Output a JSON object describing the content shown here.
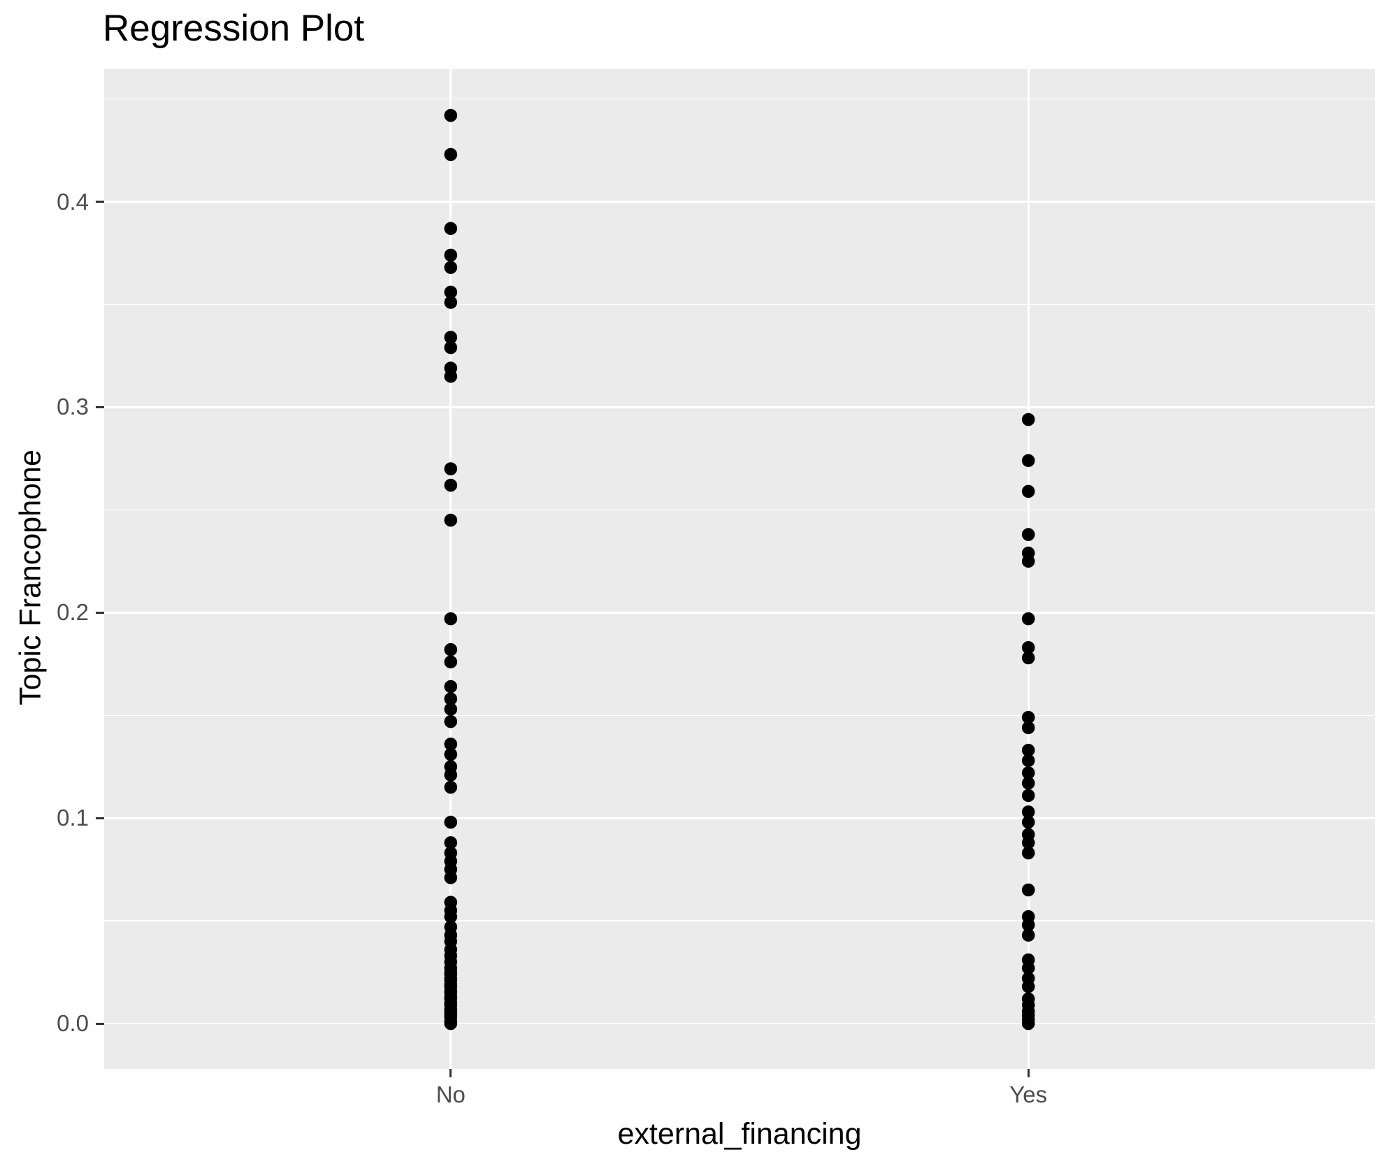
{
  "title": "Regression Plot",
  "colors": {
    "panel_background": "#EBEBEB",
    "grid": "#FFFFFF",
    "point": "#000000",
    "axis_text": "#4D4D4D",
    "axis_title": "#000000",
    "tick_mark": "#333333"
  },
  "chart_data": {
    "type": "scatter",
    "title": "Regression Plot",
    "xlabel": "external_financing",
    "ylabel": "Topic Francophone",
    "categories": [
      "No",
      "Yes"
    ],
    "ylim": [
      -0.0221,
      0.4645
    ],
    "yticks": [
      {
        "value": 0.0,
        "label": "0.0"
      },
      {
        "value": 0.1,
        "label": "0.1"
      },
      {
        "value": 0.2,
        "label": "0.2"
      },
      {
        "value": 0.3,
        "label": "0.3"
      },
      {
        "value": 0.4,
        "label": "0.4"
      }
    ],
    "yminor": [
      0.05,
      0.15,
      0.25,
      0.35,
      0.45
    ],
    "grid": "horizontal major+minor white, vertical major at each category",
    "legend_position": "none",
    "series": [
      {
        "name": "No",
        "values": [
          0.442,
          0.423,
          0.387,
          0.374,
          0.368,
          0.356,
          0.351,
          0.334,
          0.329,
          0.319,
          0.315,
          0.27,
          0.262,
          0.245,
          0.197,
          0.182,
          0.176,
          0.164,
          0.158,
          0.153,
          0.147,
          0.136,
          0.131,
          0.125,
          0.121,
          0.115,
          0.098,
          0.088,
          0.083,
          0.079,
          0.075,
          0.071,
          0.059,
          0.055,
          0.052,
          0.047,
          0.043,
          0.04,
          0.036,
          0.033,
          0.03,
          0.027,
          0.025,
          0.024,
          0.022,
          0.021,
          0.019,
          0.018,
          0.016,
          0.015,
          0.013,
          0.012,
          0.01,
          0.009,
          0.007,
          0.006,
          0.005,
          0.004,
          0.003,
          0.001,
          0.0
        ]
      },
      {
        "name": "Yes",
        "values": [
          0.294,
          0.274,
          0.259,
          0.238,
          0.229,
          0.225,
          0.197,
          0.183,
          0.178,
          0.149,
          0.144,
          0.133,
          0.128,
          0.122,
          0.117,
          0.111,
          0.103,
          0.098,
          0.092,
          0.088,
          0.083,
          0.065,
          0.052,
          0.048,
          0.043,
          0.031,
          0.027,
          0.022,
          0.018,
          0.012,
          0.009,
          0.006,
          0.004,
          0.002,
          0.0
        ]
      }
    ]
  }
}
